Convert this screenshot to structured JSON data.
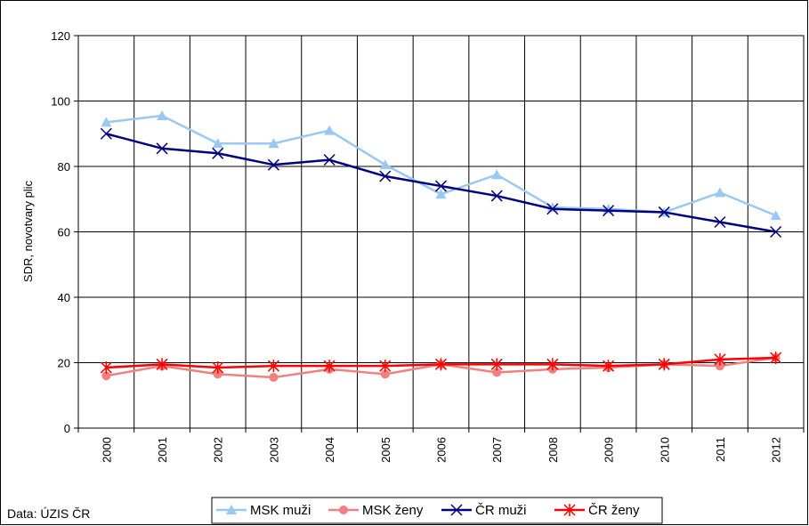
{
  "chart_data": {
    "type": "line",
    "y_label": "SDR, novotvary plic",
    "source": "Data: ÚZIS ČR",
    "categories": [
      "2000",
      "2001",
      "2002",
      "2003",
      "2004",
      "2005",
      "2006",
      "2007",
      "2008",
      "2009",
      "2010",
      "2011",
      "2012"
    ],
    "series": [
      {
        "name": "MSK muži",
        "color": "#99c9f2",
        "marker": "triangle",
        "values": [
          93.5,
          95.5,
          87,
          87,
          91,
          80.5,
          71.5,
          77.5,
          67.5,
          67,
          66,
          72,
          65
        ]
      },
      {
        "name": "MSK ženy",
        "color": "#f28080",
        "marker": "circle",
        "values": [
          16,
          19,
          16.5,
          15.5,
          18,
          16.5,
          19.5,
          17,
          18,
          18.5,
          19.5,
          19,
          21.5
        ]
      },
      {
        "name": "ČR muži",
        "color": "#000080",
        "marker": "x",
        "values": [
          90,
          85.5,
          84,
          80.5,
          82,
          77,
          74,
          71,
          67,
          66.5,
          66,
          63,
          60
        ]
      },
      {
        "name": "ČR ženy",
        "color": "#ff0000",
        "marker": "asterisk",
        "values": [
          18.5,
          19.5,
          18.5,
          19,
          19,
          19,
          19.5,
          19.5,
          19.5,
          19,
          19.5,
          21,
          21.5
        ]
      }
    ],
    "ylim": [
      0,
      120
    ],
    "yticks": [
      0,
      20,
      40,
      60,
      80,
      100,
      120
    ],
    "grid": true
  }
}
